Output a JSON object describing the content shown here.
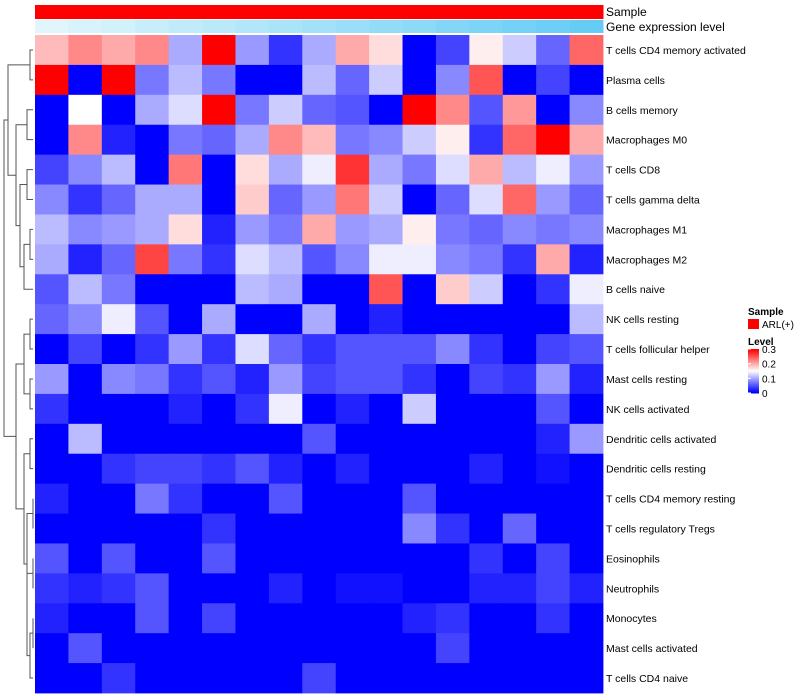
{
  "chart_data": {
    "type": "heatmap",
    "annotation_rows": [
      "Sample",
      "Gene expression level"
    ],
    "rows": [
      "T cells CD4 memory activated",
      "Plasma cells",
      "B cells memory",
      "Macrophages M0",
      "T cells CD8",
      "T cells gamma delta",
      "Macrophages M1",
      "Macrophages M2",
      "B cells naive",
      "NK cells resting",
      "T cells follicular helper",
      "Mast cells resting",
      "NK cells activated",
      "Dendritic cells activated",
      "Dendritic cells resting",
      "T cells CD4 memory resting",
      "T cells regulatory  Tregs",
      "Eosinophils",
      "Neutrophils",
      "Monocytes",
      "Mast cells activated",
      "T cells CD4 naive"
    ],
    "values": [
      [
        0.19,
        0.22,
        0.2,
        0.22,
        0.1,
        0.3,
        0.09,
        0.03,
        0.1,
        0.2,
        0.17,
        0.0,
        0.04,
        0.16,
        0.12,
        0.06,
        0.24
      ],
      [
        0.3,
        0.0,
        0.3,
        0.07,
        0.11,
        0.07,
        0.0,
        0.0,
        0.11,
        0.06,
        0.12,
        0.0,
        0.08,
        0.25,
        0.0,
        0.04,
        0.0
      ],
      [
        0.0,
        0.15,
        0.0,
        0.1,
        0.13,
        0.3,
        0.07,
        0.12,
        0.06,
        0.05,
        0.0,
        0.3,
        0.22,
        0.05,
        0.21,
        0.0,
        0.08
      ],
      [
        0.0,
        0.22,
        0.02,
        0.0,
        0.07,
        0.06,
        0.1,
        0.22,
        0.19,
        0.07,
        0.08,
        0.12,
        0.16,
        0.03,
        0.24,
        0.3,
        0.2
      ],
      [
        0.04,
        0.08,
        0.11,
        0.0,
        0.23,
        0.0,
        0.17,
        0.1,
        0.14,
        0.27,
        0.1,
        0.07,
        0.13,
        0.2,
        0.11,
        0.14,
        0.09
      ],
      [
        0.08,
        0.03,
        0.06,
        0.1,
        0.1,
        0.0,
        0.18,
        0.06,
        0.09,
        0.23,
        0.12,
        0.0,
        0.06,
        0.13,
        0.24,
        0.09,
        0.06
      ],
      [
        0.11,
        0.08,
        0.09,
        0.1,
        0.17,
        0.02,
        0.09,
        0.07,
        0.2,
        0.09,
        0.1,
        0.16,
        0.07,
        0.06,
        0.08,
        0.07,
        0.08
      ],
      [
        0.1,
        0.02,
        0.06,
        0.26,
        0.07,
        0.03,
        0.13,
        0.11,
        0.05,
        0.08,
        0.14,
        0.14,
        0.08,
        0.07,
        0.03,
        0.2,
        0.02
      ],
      [
        0.05,
        0.11,
        0.07,
        0.0,
        0.0,
        0.0,
        0.11,
        0.1,
        0.0,
        0.0,
        0.25,
        0.0,
        0.18,
        0.12,
        0.0,
        0.03,
        0.14
      ],
      [
        0.06,
        0.08,
        0.14,
        0.05,
        0.0,
        0.1,
        0.0,
        0.0,
        0.1,
        0.0,
        0.02,
        0.0,
        0.0,
        0.0,
        0.0,
        0.0,
        0.11
      ],
      [
        0.0,
        0.04,
        0.0,
        0.03,
        0.09,
        0.03,
        0.13,
        0.06,
        0.03,
        0.05,
        0.05,
        0.05,
        0.08,
        0.03,
        0.0,
        0.04,
        0.05
      ],
      [
        0.09,
        0.0,
        0.08,
        0.07,
        0.03,
        0.05,
        0.02,
        0.09,
        0.04,
        0.05,
        0.05,
        0.03,
        0.0,
        0.04,
        0.03,
        0.09,
        0.02
      ],
      [
        0.03,
        0.0,
        0.0,
        0.0,
        0.02,
        0.0,
        0.03,
        0.14,
        0.0,
        0.02,
        0.0,
        0.12,
        0.0,
        0.0,
        0.0,
        0.05,
        0.0
      ],
      [
        0.0,
        0.11,
        0.0,
        0.0,
        0.0,
        0.0,
        0.0,
        0.0,
        0.05,
        0.0,
        0.0,
        0.0,
        0.0,
        0.0,
        0.0,
        0.02,
        0.09
      ],
      [
        0.0,
        0.0,
        0.03,
        0.04,
        0.04,
        0.03,
        0.05,
        0.02,
        0.0,
        0.02,
        0.0,
        0.0,
        0.0,
        0.02,
        0.0,
        0.01,
        0.0
      ],
      [
        0.02,
        0.0,
        0.0,
        0.07,
        0.03,
        0.0,
        0.0,
        0.05,
        0.0,
        0.0,
        0.0,
        0.05,
        0.0,
        0.0,
        0.0,
        0.0,
        0.0
      ],
      [
        0.0,
        0.0,
        0.0,
        0.0,
        0.0,
        0.03,
        0.0,
        0.0,
        0.0,
        0.0,
        0.0,
        0.08,
        0.03,
        0.0,
        0.06,
        0.0,
        0.0
      ],
      [
        0.05,
        0.0,
        0.05,
        0.0,
        0.0,
        0.05,
        0.0,
        0.0,
        0.0,
        0.0,
        0.0,
        0.0,
        0.0,
        0.03,
        0.0,
        0.04,
        0.0
      ],
      [
        0.03,
        0.02,
        0.03,
        0.05,
        0.0,
        0.0,
        0.0,
        0.02,
        0.0,
        0.01,
        0.01,
        0.0,
        0.0,
        0.02,
        0.02,
        0.04,
        0.02
      ],
      [
        0.02,
        0.0,
        0.0,
        0.05,
        0.0,
        0.04,
        0.0,
        0.0,
        0.0,
        0.0,
        0.0,
        0.02,
        0.03,
        0.0,
        0.0,
        0.03,
        0.0
      ],
      [
        0.0,
        0.05,
        0.0,
        0.0,
        0.0,
        0.0,
        0.0,
        0.0,
        0.0,
        0.0,
        0.0,
        0.0,
        0.04,
        0.0,
        0.0,
        0.0,
        0.0
      ],
      [
        0.0,
        0.0,
        0.03,
        0.0,
        0.0,
        0.0,
        0.0,
        0.0,
        0.04,
        0.0,
        0.0,
        0.0,
        0.0,
        0.0,
        0.0,
        0.0,
        0.0
      ]
    ],
    "gene_expression_level": [
      0.0,
      0.06,
      0.12,
      0.18,
      0.24,
      0.3,
      0.36,
      0.42,
      0.48,
      0.54,
      0.6,
      0.66,
      0.72,
      0.78,
      0.84,
      0.9,
      0.96
    ],
    "sample_group": "ARL(+)",
    "color_scale": {
      "low": "#0000ff",
      "mid": "#ffffff",
      "high": "#ff0000",
      "range": [
        0,
        0.3
      ]
    },
    "legend": {
      "sample_title": "Sample",
      "sample_entry": "ARL(+)",
      "sample_color": "#ff0000",
      "level_title": "Level",
      "level_ticks": [
        "0.3",
        "0.2",
        "0.1",
        "0"
      ],
      "level_tick_values": [
        0.3,
        0.2,
        0.1,
        0
      ]
    },
    "row_dendrogram": true,
    "xlabel": "",
    "ylabel": ""
  }
}
